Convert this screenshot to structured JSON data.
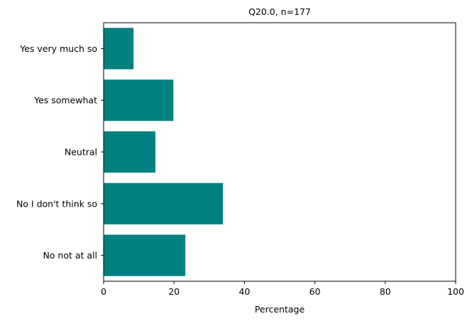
{
  "chart_data": {
    "type": "bar",
    "orientation": "horizontal",
    "title": "Q20.0, n=177",
    "xlabel": "Percentage",
    "ylabel": "",
    "xlim": [
      0,
      100
    ],
    "xticks": [
      0,
      20,
      40,
      60,
      80,
      100
    ],
    "categories": [
      "Yes very much so",
      "Yes somewhat",
      "Neutral",
      "No I don't think so",
      "No not at all"
    ],
    "values": [
      8.5,
      19.8,
      14.7,
      33.9,
      23.2
    ],
    "bar_color": "#008080",
    "grid": false,
    "legend": "none"
  }
}
